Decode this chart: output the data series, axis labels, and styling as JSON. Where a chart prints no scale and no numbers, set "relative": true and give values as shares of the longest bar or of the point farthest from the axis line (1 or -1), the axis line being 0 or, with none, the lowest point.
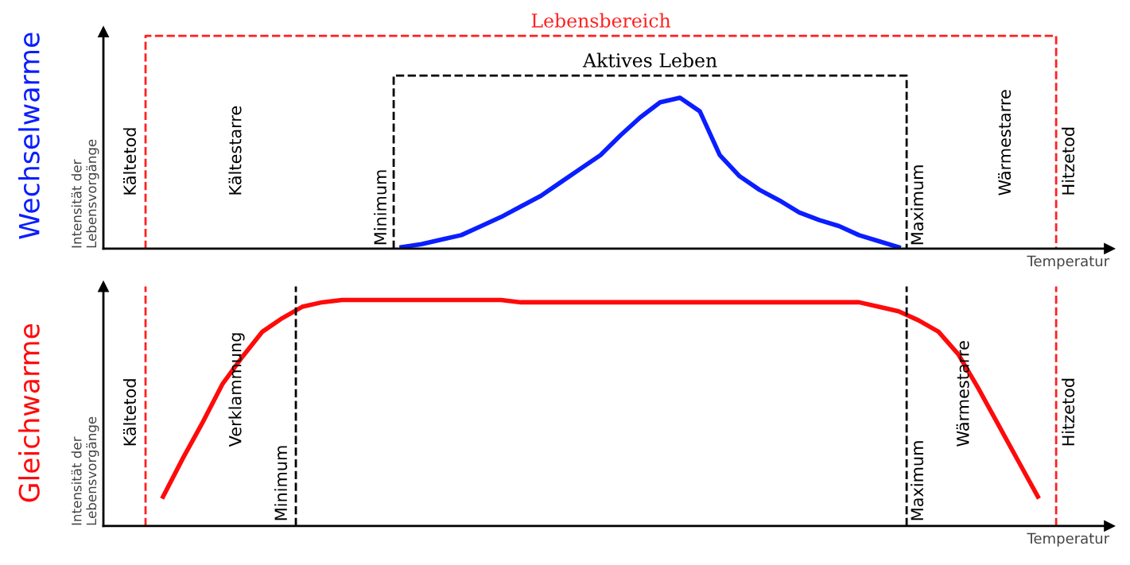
{
  "chart_data": [
    {
      "type": "line",
      "title": "Wechselwarme",
      "ylabel": "Intensität der\nLebensvorgänge",
      "xlabel": "Temperatur",
      "relative": true,
      "legend": false,
      "marker": "none",
      "line_style": "solid",
      "categories": [
        null,
        null,
        null,
        null,
        null,
        null,
        null,
        null,
        null,
        null,
        null,
        null,
        null,
        null,
        null,
        null,
        null,
        null,
        null,
        null,
        null,
        null,
        null,
        null,
        null,
        null,
        null,
        null,
        null,
        null,
        null,
        null,
        null,
        null,
        null,
        null,
        null,
        null,
        null,
        null,
        null,
        null,
        null,
        null,
        null,
        null,
        null,
        null,
        null,
        null,
        null
      ],
      "series": [
        {
          "color": "#0a1eff",
          "values": [
            null,
            null,
            null,
            null,
            null,
            null,
            null,
            null,
            null,
            null,
            null,
            null,
            null,
            null,
            null,
            0.01,
            0.03,
            0.06,
            0.09,
            0.15,
            0.21,
            0.28,
            0.35,
            0.44,
            0.53,
            0.62,
            0.75,
            0.87,
            0.97,
            1,
            0.91,
            0.62,
            0.48,
            0.39,
            0.32,
            0.24,
            0.19,
            0.15,
            0.09,
            0.05,
            0.01,
            null,
            null,
            null,
            null,
            null,
            null,
            null,
            null,
            null,
            null
          ]
        }
      ],
      "annotations": [
        "Kältetod",
        "Kältestarre",
        "Minimum",
        "Maximum",
        "Wärmestarre",
        "Hitzetod",
        "Lebensbereich",
        "Aktives Leben"
      ]
    },
    {
      "type": "line",
      "title": "Gleichwarme",
      "ylabel": "Intensität der\nLebensvorgänge",
      "xlabel": "Temperatur",
      "relative": true,
      "legend": false,
      "marker": "none",
      "line_style": "solid",
      "categories": [
        null,
        null,
        null,
        null,
        null,
        null,
        null,
        null,
        null,
        null,
        null,
        null,
        null,
        null,
        null,
        null,
        null,
        null,
        null,
        null,
        null,
        null,
        null,
        null,
        null,
        null,
        null,
        null,
        null,
        null,
        null,
        null,
        null,
        null,
        null,
        null,
        null,
        null,
        null,
        null,
        null,
        null,
        null,
        null,
        null,
        null,
        null,
        null,
        null,
        null,
        null
      ],
      "series": [
        {
          "color": "#ff0a0a",
          "values": [
            null,
            null,
            null,
            0.13,
            0.3,
            0.46,
            0.63,
            0.75,
            0.86,
            0.92,
            0.97,
            0.99,
            1,
            1,
            1,
            1,
            1,
            1,
            1,
            1,
            1,
            0.99,
            0.99,
            0.99,
            0.99,
            0.99,
            0.99,
            0.99,
            0.99,
            0.99,
            0.99,
            0.99,
            0.99,
            0.99,
            0.99,
            0.99,
            0.99,
            0.99,
            0.99,
            0.97,
            0.95,
            0.91,
            0.86,
            0.76,
            0.61,
            0.45,
            0.29,
            0.13,
            null,
            null,
            null
          ]
        }
      ],
      "annotations": [
        "Kältetod",
        "Verklammung",
        "Minimum",
        "Maximum",
        "Wärmestarre",
        "Hitzetod"
      ]
    }
  ]
}
